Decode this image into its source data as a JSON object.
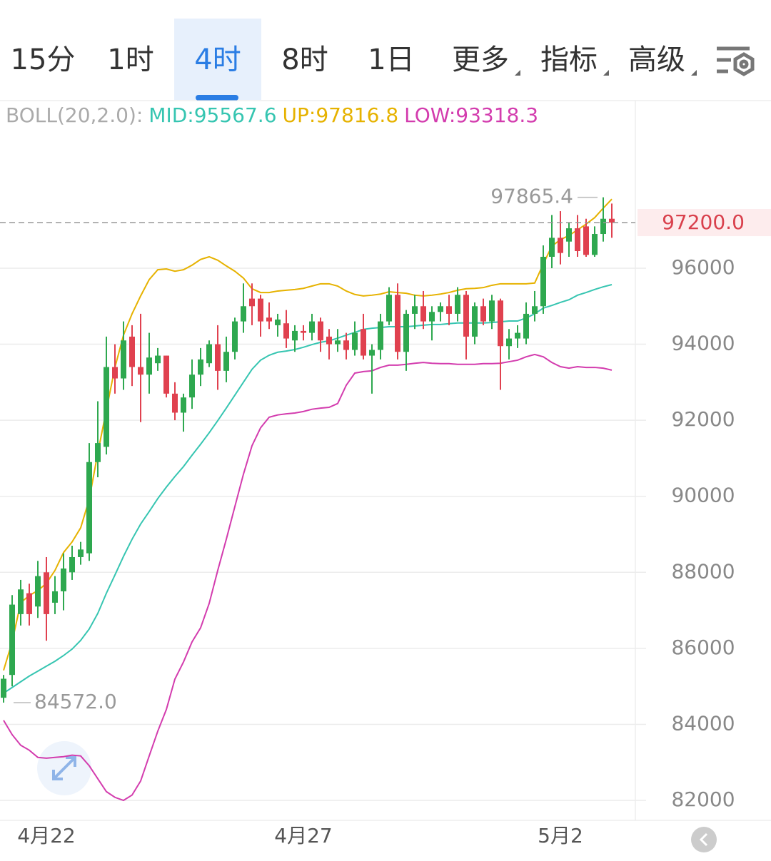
{
  "tabs": [
    {
      "label": "15分"
    },
    {
      "label": "1时"
    },
    {
      "label": "4时",
      "active": true
    },
    {
      "label": "8时"
    },
    {
      "label": "1日"
    },
    {
      "label": "更多",
      "dropdown": true
    },
    {
      "label": "指标",
      "dropdown": true
    },
    {
      "label": "高级",
      "dropdown": true
    }
  ],
  "chart_data": {
    "type": "candlestick",
    "indicator": "BOLL(20,2.0):",
    "up_color": "#2ea84f",
    "down_color": "#e0414f",
    "categories": [
      null,
      null,
      null,
      null,
      null,
      "4月22",
      null,
      null,
      null,
      null,
      null,
      null,
      null,
      null,
      null,
      null,
      null,
      null,
      null,
      null,
      null,
      null,
      null,
      null,
      null,
      null,
      null,
      null,
      null,
      null,
      null,
      null,
      null,
      null,
      null,
      "4月27",
      null,
      null,
      null,
      null,
      null,
      null,
      null,
      null,
      null,
      null,
      null,
      null,
      null,
      null,
      null,
      null,
      null,
      null,
      null,
      null,
      null,
      null,
      null,
      null,
      null,
      null,
      null,
      null,
      null,
      "5月2",
      null,
      null,
      null,
      null,
      null,
      null
    ],
    "open": [
      84700,
      85300,
      86900,
      87450,
      87100,
      88000,
      87200,
      87500,
      88000,
      88400,
      88500,
      90900,
      91300,
      93400,
      93100,
      94200,
      93400,
      93200,
      93500,
      93700,
      92700,
      92200,
      92600,
      93200,
      93500,
      94000,
      93300,
      93800,
      94600,
      95200,
      95200,
      94700,
      94500,
      94550,
      94100,
      94350,
      94300,
      94600,
      94200,
      94000,
      94100,
      93850,
      94400,
      93700,
      93850,
      94600,
      95300,
      93800,
      94800,
      95000,
      94600,
      94850,
      95000,
      94800,
      95300,
      94200,
      95000,
      94600,
      95150,
      93950,
      94150,
      94150,
      94800,
      95000,
      96300,
      96800,
      96700,
      97050,
      97100,
      96350,
      96900,
      97300
    ],
    "high": [
      85300,
      87400,
      87800,
      87700,
      88300,
      88400,
      87900,
      88500,
      88700,
      88800,
      91400,
      92500,
      94200,
      94000,
      94600,
      94500,
      94800,
      94300,
      93900,
      93700,
      93000,
      92700,
      93600,
      93900,
      94100,
      94500,
      94200,
      94700,
      95600,
      95600,
      95300,
      95100,
      94800,
      94900,
      94500,
      94500,
      94800,
      94700,
      94400,
      94400,
      94300,
      94600,
      94800,
      94000,
      94800,
      95500,
      95600,
      94900,
      95300,
      95400,
      95000,
      95100,
      95300,
      95500,
      95400,
      95100,
      95200,
      95300,
      95200,
      94400,
      94500,
      95100,
      95400,
      96600,
      97400,
      97500,
      97200,
      97400,
      97300,
      97100,
      97865.4,
      97700
    ],
    "low": [
      84572,
      85000,
      86600,
      86600,
      86800,
      86200,
      86900,
      87000,
      87800,
      88200,
      88300,
      90500,
      91100,
      92700,
      92800,
      92900,
      91950,
      92700,
      93300,
      92600,
      92000,
      91700,
      92300,
      92900,
      93400,
      92800,
      93000,
      93600,
      94300,
      94500,
      94200,
      94400,
      94200,
      93900,
      93800,
      94100,
      94100,
      93800,
      93600,
      93800,
      93600,
      93700,
      93600,
      92700,
      93600,
      94500,
      93600,
      93300,
      94400,
      94400,
      94100,
      94600,
      94500,
      94600,
      93600,
      94000,
      94500,
      94400,
      92800,
      93600,
      93900,
      94000,
      94600,
      94800,
      96000,
      96100,
      96300,
      96300,
      96300,
      96300,
      96700,
      96800
    ],
    "close": [
      85200,
      87150,
      87550,
      86900,
      87900,
      86900,
      87500,
      88100,
      88400,
      88600,
      90900,
      91400,
      93400,
      93100,
      94100,
      93400,
      93200,
      93650,
      93700,
      92700,
      92200,
      92600,
      93200,
      93600,
      94000,
      93300,
      93800,
      94600,
      95000,
      95000,
      94600,
      94600,
      94650,
      94150,
      94350,
      94300,
      94600,
      94100,
      94000,
      94100,
      93850,
      94300,
      93700,
      93850,
      94600,
      95300,
      93800,
      94800,
      95000,
      94600,
      94850,
      95000,
      94800,
      95300,
      94200,
      95000,
      94600,
      95150,
      93950,
      94150,
      94300,
      94800,
      95000,
      96300,
      96800,
      96400,
      97050,
      96450,
      96350,
      96900,
      97300,
      97200
    ],
    "lines": [
      {
        "name": "MID",
        "color": "#36c5b1",
        "values": [
          84820,
          84970,
          85120,
          85270,
          85400,
          85530,
          85660,
          85810,
          85980,
          86210,
          86510,
          86920,
          87450,
          87930,
          88420,
          88870,
          89270,
          89600,
          89940,
          90240,
          90520,
          90780,
          91080,
          91370,
          91670,
          91990,
          92320,
          92660,
          93000,
          93340,
          93580,
          93710,
          93790,
          93820,
          93860,
          93920,
          93990,
          94050,
          94090,
          94160,
          94240,
          94310,
          94390,
          94420,
          94440,
          94460,
          94460,
          94460,
          94480,
          94500,
          94520,
          94520,
          94540,
          94560,
          94560,
          94560,
          94560,
          94570,
          94590,
          94610,
          94610,
          94690,
          94800,
          94950,
          95020,
          95100,
          95170,
          95290,
          95360,
          95440,
          95510,
          95567.6
        ]
      },
      {
        "name": "UP",
        "color": "#e6b200",
        "values": [
          85420,
          86170,
          87200,
          87390,
          87520,
          87710,
          88050,
          88520,
          88800,
          89170,
          89920,
          91140,
          92270,
          93390,
          94240,
          94800,
          95270,
          95700,
          95960,
          95980,
          95920,
          95960,
          96080,
          96230,
          96300,
          96210,
          96060,
          95920,
          95740,
          95460,
          95360,
          95360,
          95400,
          95420,
          95440,
          95470,
          95530,
          95590,
          95590,
          95530,
          95400,
          95310,
          95270,
          95290,
          95320,
          95380,
          95360,
          95340,
          95290,
          95270,
          95290,
          95320,
          95360,
          95420,
          95460,
          95470,
          95490,
          95550,
          95590,
          95590,
          95590,
          95590,
          95610,
          96110,
          96580,
          96750,
          96860,
          97010,
          97160,
          97330,
          97580,
          97816.8
        ]
      },
      {
        "name": "LOW",
        "color": "#d33cae",
        "values": [
          84106,
          83730,
          83450,
          83320,
          83130,
          83110,
          83130,
          83150,
          83190,
          83170,
          82910,
          82570,
          82230,
          82080,
          82000,
          82140,
          82510,
          83170,
          83820,
          84390,
          85190,
          85640,
          86170,
          86540,
          87180,
          88050,
          88870,
          89730,
          90580,
          91330,
          91800,
          92080,
          92140,
          92170,
          92190,
          92230,
          92290,
          92320,
          92340,
          92440,
          92920,
          93240,
          93280,
          93300,
          93390,
          93450,
          93450,
          93470,
          93500,
          93520,
          93500,
          93490,
          93490,
          93470,
          93470,
          93470,
          93490,
          93490,
          93500,
          93540,
          93580,
          93670,
          93730,
          93670,
          93520,
          93410,
          93370,
          93410,
          93390,
          93390,
          93370,
          93318.3
        ]
      }
    ],
    "annotations": [
      {
        "value": 97865.4,
        "text": "97865.4"
      },
      {
        "value": 84572,
        "text": "84572.0"
      }
    ],
    "last_price": {
      "value": 97200,
      "label": "97200.0"
    },
    "ylim": [
      81475,
      100372
    ],
    "yticks": [
      82000,
      84000,
      86000,
      88000,
      90000,
      92000,
      94000,
      96000
    ],
    "grid": true
  }
}
